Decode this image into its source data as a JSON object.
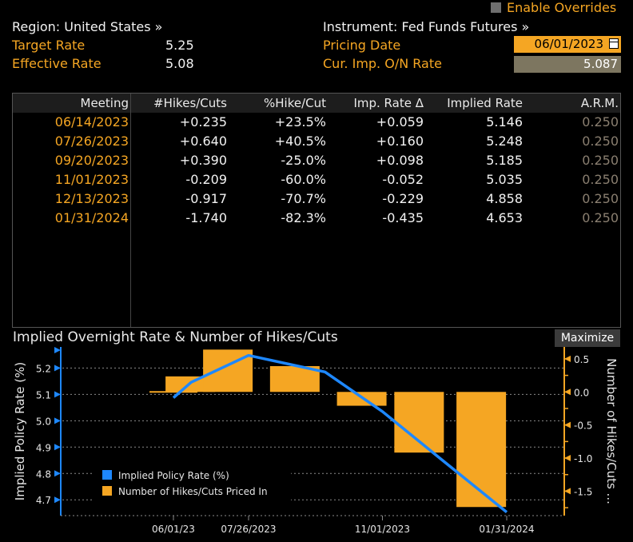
{
  "overrides": {
    "label": "Enable Overrides"
  },
  "header": {
    "region": "Region: United States »",
    "instrument": "Instrument: Fed Funds Futures »",
    "target_rate_label": "Target Rate",
    "target_rate_value": "5.25",
    "effective_rate_label": "Effective Rate",
    "effective_rate_value": "5.08",
    "pricing_date_label": "Pricing Date",
    "pricing_date_value": "06/01/2023",
    "cur_imp_label": "Cur. Imp. O/N Rate",
    "cur_imp_value": "5.087"
  },
  "table": {
    "columns": [
      "Meeting",
      "#Hikes/Cuts",
      "%Hike/Cut",
      "Imp. Rate Δ",
      "Implied Rate",
      "A.R.M."
    ],
    "rows": [
      [
        "06/14/2023",
        "+0.235",
        "+23.5%",
        "+0.059",
        "5.146",
        "0.250"
      ],
      [
        "07/26/2023",
        "+0.640",
        "+40.5%",
        "+0.160",
        "5.248",
        "0.250"
      ],
      [
        "09/20/2023",
        "+0.390",
        "-25.0%",
        "+0.098",
        "5.185",
        "0.250"
      ],
      [
        "11/01/2023",
        "-0.209",
        "-60.0%",
        "-0.052",
        "5.035",
        "0.250"
      ],
      [
        "12/13/2023",
        "-0.917",
        "-70.7%",
        "-0.229",
        "4.858",
        "0.250"
      ],
      [
        "01/31/2024",
        "-1.740",
        "-82.3%",
        "-0.435",
        "4.653",
        "0.250"
      ]
    ]
  },
  "chart": {
    "title": "Implied Overnight Rate & Number of Hikes/Cuts",
    "maximize_label": "Maximize"
  },
  "chart_data": {
    "type": "bar",
    "title": "Implied Overnight Rate & Number of Hikes/Cuts",
    "ylabel": "Implied Policy Rate (%)",
    "y2label": "Number of Hikes/Cuts ...",
    "x_ticks": [
      "06/01/23",
      "07/26/2023",
      "11/01/2023",
      "01/31/2024"
    ],
    "y_ticks": [
      "5.2",
      "5.1",
      "5.0",
      "4.9",
      "4.8",
      "4.7"
    ],
    "y2_ticks": [
      "0.5",
      "0.0",
      "-0.5",
      "-1.0",
      "-1.5"
    ],
    "ylim": [
      4.64,
      5.28
    ],
    "y2lim": [
      -1.87,
      0.68
    ],
    "x": [
      "06/01/2023",
      "06/14/2023",
      "07/26/2023",
      "09/20/2023",
      "11/01/2023",
      "12/13/2023",
      "01/31/2024"
    ],
    "series": [
      {
        "name": "Implied Policy Rate (%)",
        "kind": "line",
        "color": "#1e88ff",
        "values": [
          5.087,
          5.146,
          5.248,
          5.185,
          5.035,
          4.858,
          4.653
        ]
      },
      {
        "name": "Number of Hikes/Cuts Priced In",
        "kind": "bar",
        "color": "#f5a623",
        "values": [
          0.0,
          0.235,
          0.64,
          0.39,
          -0.209,
          -0.917,
          -1.74
        ]
      }
    ],
    "legend_position": "bottom-left",
    "grid": true
  }
}
